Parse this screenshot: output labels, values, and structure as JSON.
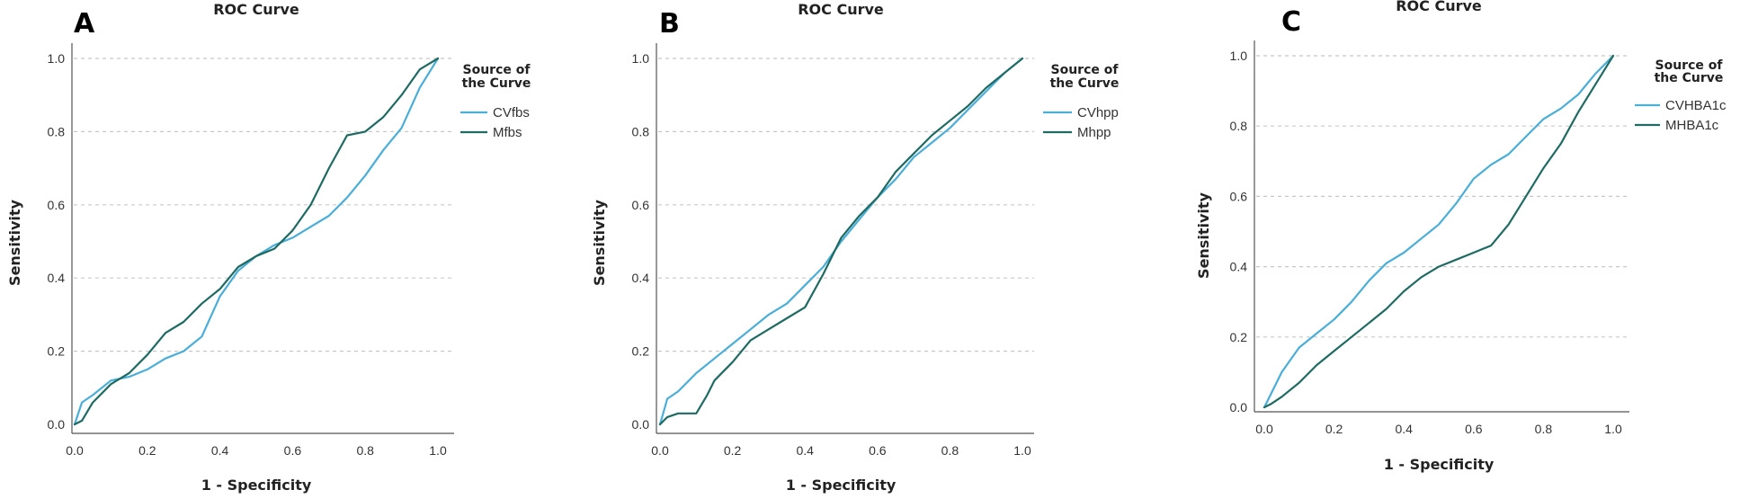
{
  "chart_data": [
    {
      "type": "line",
      "panel_label": "A",
      "title": "ROC Curve",
      "xlabel": "1 - Specificity",
      "ylabel": "Sensitivity",
      "xlim": [
        0,
        1
      ],
      "ylim": [
        0,
        1
      ],
      "x_ticks": [
        "0.0",
        "0.2",
        "0.4",
        "0.6",
        "0.8",
        "1.0"
      ],
      "y_ticks": [
        "0.0",
        "0.2",
        "0.4",
        "0.6",
        "0.8",
        "1.0"
      ],
      "grid": "horizontal-dashed",
      "legend_title": "Source of the Curve",
      "legend_position": "right",
      "series": [
        {
          "name": "CVfbs",
          "color": "#4aaed8",
          "x": [
            0,
            0.02,
            0.05,
            0.1,
            0.15,
            0.2,
            0.25,
            0.3,
            0.35,
            0.4,
            0.45,
            0.5,
            0.55,
            0.6,
            0.65,
            0.7,
            0.75,
            0.8,
            0.85,
            0.9,
            0.95,
            1.0
          ],
          "y": [
            0,
            0.06,
            0.08,
            0.12,
            0.13,
            0.15,
            0.18,
            0.2,
            0.24,
            0.35,
            0.42,
            0.46,
            0.49,
            0.51,
            0.54,
            0.57,
            0.62,
            0.68,
            0.75,
            0.81,
            0.92,
            1.0
          ]
        },
        {
          "name": "Mfbs",
          "color": "#1f6b63",
          "x": [
            0,
            0.02,
            0.05,
            0.1,
            0.15,
            0.2,
            0.25,
            0.3,
            0.35,
            0.4,
            0.45,
            0.5,
            0.55,
            0.6,
            0.65,
            0.7,
            0.75,
            0.8,
            0.85,
            0.9,
            0.95,
            1.0
          ],
          "y": [
            0,
            0.01,
            0.06,
            0.11,
            0.14,
            0.19,
            0.25,
            0.28,
            0.33,
            0.37,
            0.43,
            0.46,
            0.48,
            0.53,
            0.6,
            0.7,
            0.79,
            0.8,
            0.84,
            0.9,
            0.97,
            1.0
          ]
        }
      ]
    },
    {
      "type": "line",
      "panel_label": "B",
      "title": "ROC Curve",
      "xlabel": "1 - Specificity",
      "ylabel": "Sensitivity",
      "xlim": [
        0,
        1
      ],
      "ylim": [
        0,
        1
      ],
      "x_ticks": [
        "0.0",
        "0.2",
        "0.4",
        "0.6",
        "0.8",
        "1.0"
      ],
      "y_ticks": [
        "0.0",
        "0.2",
        "0.4",
        "0.6",
        "0.8",
        "1.0"
      ],
      "grid": "horizontal-dashed",
      "legend_title": "Source of the Curve",
      "legend_position": "right",
      "series": [
        {
          "name": "CVhpp",
          "color": "#4aaed8",
          "x": [
            0,
            0.02,
            0.05,
            0.1,
            0.15,
            0.2,
            0.25,
            0.3,
            0.35,
            0.4,
            0.45,
            0.5,
            0.55,
            0.6,
            0.65,
            0.7,
            0.75,
            0.8,
            0.85,
            0.9,
            0.95,
            1.0
          ],
          "y": [
            0,
            0.07,
            0.09,
            0.14,
            0.18,
            0.22,
            0.26,
            0.3,
            0.33,
            0.38,
            0.43,
            0.5,
            0.56,
            0.62,
            0.67,
            0.73,
            0.77,
            0.81,
            0.86,
            0.91,
            0.96,
            1.0
          ]
        },
        {
          "name": "Mhpp",
          "color": "#1f6b63",
          "x": [
            0,
            0.02,
            0.05,
            0.1,
            0.13,
            0.15,
            0.2,
            0.25,
            0.3,
            0.35,
            0.4,
            0.45,
            0.5,
            0.55,
            0.6,
            0.65,
            0.7,
            0.75,
            0.8,
            0.85,
            0.9,
            0.95,
            1.0
          ],
          "y": [
            0,
            0.02,
            0.03,
            0.03,
            0.08,
            0.12,
            0.17,
            0.23,
            0.26,
            0.29,
            0.32,
            0.41,
            0.51,
            0.57,
            0.62,
            0.69,
            0.74,
            0.79,
            0.83,
            0.87,
            0.92,
            0.96,
            1.0
          ]
        }
      ]
    },
    {
      "type": "line",
      "panel_label": "C",
      "title": "ROC Curve",
      "xlabel": "1 - Specificity",
      "ylabel": "Sensitivity",
      "xlim": [
        0,
        1
      ],
      "ylim": [
        0,
        1
      ],
      "x_ticks": [
        "0.0",
        "0.2",
        "0.4",
        "0.6",
        "0.8",
        "1.0"
      ],
      "y_ticks": [
        "0.0",
        "0.2",
        "0.4",
        "0.6",
        "0.8",
        "1.0"
      ],
      "grid": "horizontal-dashed",
      "legend_title": "Source of the Curve",
      "legend_position": "right",
      "series": [
        {
          "name": "CVHBA1c",
          "color": "#4aaed8",
          "x": [
            0,
            0.02,
            0.05,
            0.1,
            0.15,
            0.2,
            0.25,
            0.3,
            0.35,
            0.4,
            0.45,
            0.5,
            0.55,
            0.6,
            0.65,
            0.7,
            0.75,
            0.8,
            0.85,
            0.9,
            0.95,
            1.0
          ],
          "y": [
            0,
            0.04,
            0.1,
            0.17,
            0.21,
            0.25,
            0.3,
            0.36,
            0.41,
            0.44,
            0.48,
            0.52,
            0.58,
            0.65,
            0.69,
            0.72,
            0.77,
            0.82,
            0.85,
            0.89,
            0.95,
            1.0
          ]
        },
        {
          "name": "MHBA1c",
          "color": "#1f6b63",
          "x": [
            0,
            0.02,
            0.05,
            0.1,
            0.15,
            0.2,
            0.25,
            0.3,
            0.35,
            0.4,
            0.45,
            0.5,
            0.55,
            0.6,
            0.65,
            0.7,
            0.75,
            0.8,
            0.85,
            0.9,
            0.95,
            1.0
          ],
          "y": [
            0,
            0.01,
            0.03,
            0.07,
            0.12,
            0.16,
            0.2,
            0.24,
            0.28,
            0.33,
            0.37,
            0.4,
            0.42,
            0.44,
            0.46,
            0.52,
            0.6,
            0.68,
            0.75,
            0.84,
            0.92,
            1.0
          ]
        }
      ]
    }
  ]
}
